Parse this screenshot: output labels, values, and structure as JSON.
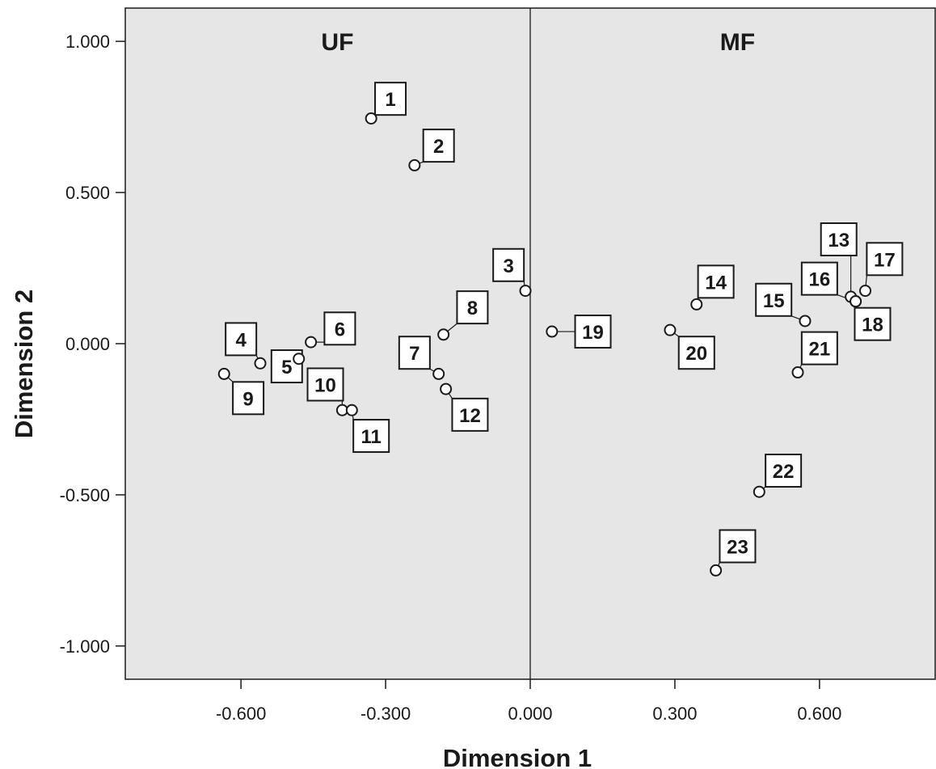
{
  "chart_data": {
    "type": "scatter",
    "title": "",
    "xlabel": "Dimension 1",
    "ylabel": "Dimension 2",
    "xlim": [
      -0.84,
      0.84
    ],
    "ylim": [
      -1.11,
      1.11
    ],
    "x_ticks": [
      {
        "value": -0.6,
        "label": "-0.600"
      },
      {
        "value": -0.3,
        "label": "-0.300"
      },
      {
        "value": 0.0,
        "label": "0.000"
      },
      {
        "value": 0.3,
        "label": "0.300"
      },
      {
        "value": 0.6,
        "label": "0.600"
      }
    ],
    "y_ticks": [
      {
        "value": 1.0,
        "label": "1.000"
      },
      {
        "value": 0.5,
        "label": "0.500"
      },
      {
        "value": 0.0,
        "label": "0.000"
      },
      {
        "value": -0.5,
        "label": "-0.500"
      },
      {
        "value": -1.0,
        "label": "-1.000"
      }
    ],
    "reference_line_x": 0.0,
    "grid": false,
    "region_labels": [
      {
        "text": "UF",
        "x": -0.4,
        "y": 1.0
      },
      {
        "text": "MF",
        "x": 0.43,
        "y": 1.0
      }
    ],
    "points": [
      {
        "label": "1",
        "x": -0.33,
        "y": 0.745,
        "lx": -0.29,
        "ly": 0.81
      },
      {
        "label": "2",
        "x": -0.24,
        "y": 0.59,
        "lx": -0.19,
        "ly": 0.655
      },
      {
        "label": "3",
        "x": -0.01,
        "y": 0.175,
        "lx": -0.045,
        "ly": 0.26
      },
      {
        "label": "4",
        "x": -0.56,
        "y": -0.065,
        "lx": -0.6,
        "ly": 0.015
      },
      {
        "label": "5",
        "x": -0.48,
        "y": -0.05,
        "lx": -0.505,
        "ly": -0.075
      },
      {
        "label": "6",
        "x": -0.455,
        "y": 0.005,
        "lx": -0.395,
        "ly": 0.05
      },
      {
        "label": "7",
        "x": -0.19,
        "y": -0.1,
        "lx": -0.24,
        "ly": -0.03
      },
      {
        "label": "8",
        "x": -0.18,
        "y": 0.03,
        "lx": -0.12,
        "ly": 0.12
      },
      {
        "label": "9",
        "x": -0.635,
        "y": -0.1,
        "lx": -0.585,
        "ly": -0.18
      },
      {
        "label": "10",
        "x": -0.39,
        "y": -0.22,
        "lx": -0.425,
        "ly": -0.135
      },
      {
        "label": "11",
        "x": -0.37,
        "y": -0.22,
        "lx": -0.33,
        "ly": -0.305
      },
      {
        "label": "12",
        "x": -0.175,
        "y": -0.15,
        "lx": -0.125,
        "ly": -0.235
      },
      {
        "label": "13",
        "x": 0.665,
        "y": 0.155,
        "lx": 0.64,
        "ly": 0.345
      },
      {
        "label": "14",
        "x": 0.345,
        "y": 0.13,
        "lx": 0.385,
        "ly": 0.205
      },
      {
        "label": "15",
        "x": 0.57,
        "y": 0.075,
        "lx": 0.505,
        "ly": 0.145
      },
      {
        "label": "16",
        "x": 0.675,
        "y": 0.14,
        "lx": 0.6,
        "ly": 0.215
      },
      {
        "label": "17",
        "x": 0.695,
        "y": 0.175,
        "lx": 0.735,
        "ly": 0.28
      },
      {
        "label": "18",
        "x": 0.675,
        "y": 0.14,
        "lx": 0.71,
        "ly": 0.065
      },
      {
        "label": "19",
        "x": 0.045,
        "y": 0.04,
        "lx": 0.13,
        "ly": 0.04
      },
      {
        "label": "20",
        "x": 0.29,
        "y": 0.045,
        "lx": 0.345,
        "ly": -0.03
      },
      {
        "label": "21",
        "x": 0.555,
        "y": -0.095,
        "lx": 0.6,
        "ly": -0.015
      },
      {
        "label": "22",
        "x": 0.475,
        "y": -0.49,
        "lx": 0.525,
        "ly": -0.42
      },
      {
        "label": "23",
        "x": 0.385,
        "y": -0.75,
        "lx": 0.43,
        "ly": -0.67
      }
    ]
  }
}
